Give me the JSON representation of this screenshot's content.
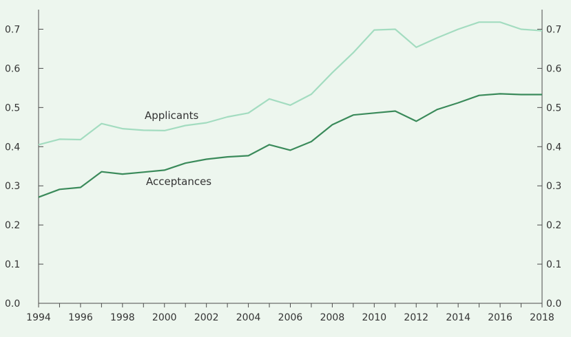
{
  "chart_data": {
    "type": "line",
    "title": "",
    "xlabel": "",
    "ylabel": "",
    "xlim": [
      1994,
      2018
    ],
    "ylim": [
      0,
      0.75
    ],
    "x_ticks": [
      1994,
      1996,
      1998,
      2000,
      2002,
      2004,
      2006,
      2008,
      2010,
      2012,
      2014,
      2016,
      2018
    ],
    "y_ticks": [
      0.0,
      0.1,
      0.2,
      0.3,
      0.4,
      0.5,
      0.6,
      0.7
    ],
    "y_tick_labels": [
      "0.0",
      "0.1",
      "0.2",
      "0.3",
      "0.4",
      "0.5",
      "0.6",
      "0.7"
    ],
    "x": [
      1994,
      1995,
      1996,
      1997,
      1998,
      1999,
      2000,
      2001,
      2002,
      2003,
      2004,
      2005,
      2006,
      2007,
      2008,
      2009,
      2010,
      2011,
      2012,
      2013,
      2014,
      2015,
      2016,
      2017,
      2018
    ],
    "series": [
      {
        "name": "Applicants",
        "color": "#a3dcc0",
        "values": [
          0.405,
          0.419,
          0.418,
          0.459,
          0.446,
          0.442,
          0.441,
          0.454,
          0.461,
          0.476,
          0.486,
          0.522,
          0.506,
          0.534,
          0.589,
          0.64,
          0.698,
          0.7,
          0.654,
          0.678,
          0.7,
          0.718,
          0.718,
          0.7,
          0.696
        ]
      },
      {
        "name": "Acceptances",
        "color": "#3a8a5a",
        "values": [
          0.271,
          0.291,
          0.296,
          0.336,
          0.33,
          0.335,
          0.34,
          0.358,
          0.368,
          0.374,
          0.377,
          0.405,
          0.391,
          0.413,
          0.456,
          0.481,
          0.486,
          0.491,
          0.465,
          0.495,
          0.512,
          0.531,
          0.535,
          0.533,
          0.533
        ]
      }
    ],
    "grid": false,
    "right_axis": true,
    "legend": "inline labels"
  }
}
